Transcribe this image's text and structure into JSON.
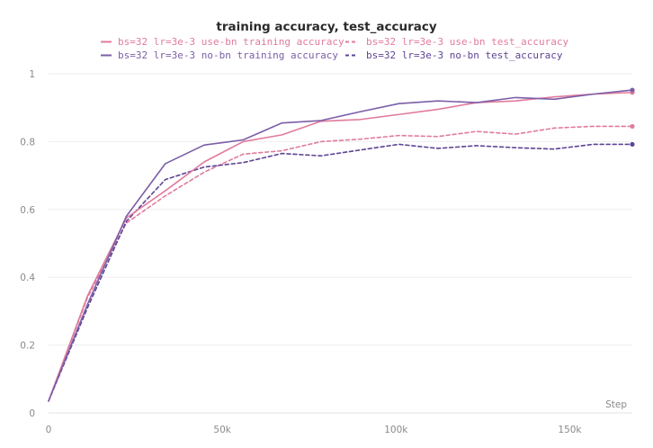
{
  "chart_data": {
    "type": "line",
    "title": "training accuracy, test_accuracy",
    "xlabel": "Step",
    "ylabel": "",
    "xlim": [
      0,
      168000
    ],
    "ylim": [
      0,
      1
    ],
    "x_ticks": [
      0,
      50000,
      100000,
      150000
    ],
    "x_tick_labels": [
      "0",
      "50k",
      "100k",
      "150k"
    ],
    "y_ticks": [
      0,
      0.2,
      0.4,
      0.6,
      0.8,
      1
    ],
    "y_tick_labels": [
      "0",
      "0.2",
      "0.4",
      "0.6",
      "0.8",
      "1"
    ],
    "grid": true,
    "legend_position": "top-center",
    "x": [
      0,
      11200,
      22400,
      33600,
      44800,
      56000,
      67200,
      78400,
      89600,
      100800,
      112000,
      123200,
      134400,
      145600,
      156800,
      168000
    ],
    "series": [
      {
        "name": "bs=32 lr=3e-3 use-bn training accuracy",
        "color": "#e07b9c",
        "dash": "solid",
        "values": [
          0.035,
          0.345,
          0.575,
          0.655,
          0.74,
          0.8,
          0.82,
          0.86,
          0.865,
          0.88,
          0.895,
          0.915,
          0.92,
          0.932,
          0.94,
          0.945
        ]
      },
      {
        "name": "bs=32 lr=3e-3 use-bn test_accuracy",
        "color": "#e07b9c",
        "dash": "dashed",
        "values": [
          0.035,
          0.34,
          0.56,
          0.64,
          0.71,
          0.763,
          0.773,
          0.8,
          0.807,
          0.818,
          0.815,
          0.83,
          0.822,
          0.84,
          0.845,
          0.845
        ]
      },
      {
        "name": "bs=32 lr=3e-3 no-bn training accuracy",
        "color": "#7b5ea7",
        "dash": "solid",
        "values": [
          0.035,
          0.32,
          0.58,
          0.735,
          0.79,
          0.805,
          0.855,
          0.862,
          0.888,
          0.912,
          0.92,
          0.915,
          0.93,
          0.925,
          0.94,
          0.952
        ]
      },
      {
        "name": "bs=32 lr=3e-3 no-bn test_accuracy",
        "color": "#5d4494",
        "dash": "dashed",
        "values": [
          0.035,
          0.31,
          0.565,
          0.688,
          0.725,
          0.738,
          0.765,
          0.758,
          0.775,
          0.792,
          0.78,
          0.788,
          0.782,
          0.778,
          0.792,
          0.792
        ]
      }
    ]
  }
}
